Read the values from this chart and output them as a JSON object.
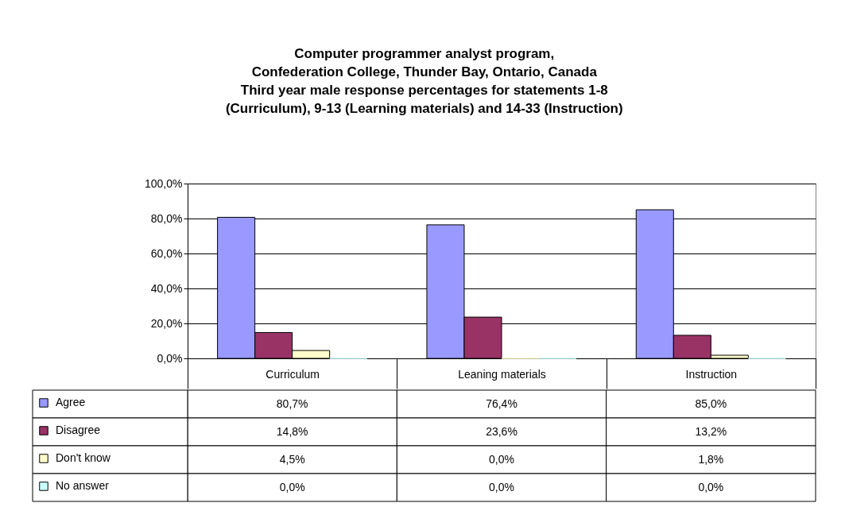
{
  "chart_data": {
    "type": "bar",
    "title": "Computer programmer analyst program,\nConfederation College, Thunder Bay, Ontario, Canada\nThird year male response percentages for statements 1-8\n(Curriculum), 9-13 (Learning materials) and 14-33 (Instruction)",
    "categories": [
      "Curriculum",
      "Leaning materials",
      "Instruction"
    ],
    "series": [
      {
        "name": "Agree",
        "color": "#9999ff",
        "values": [
          80.7,
          76.4,
          85.0
        ],
        "value_labels": [
          "80,7%",
          "76,4%",
          "85,0%"
        ]
      },
      {
        "name": "Disagree",
        "color": "#993366",
        "values": [
          14.8,
          23.6,
          13.2
        ],
        "value_labels": [
          "14,8%",
          "23,6%",
          "13,2%"
        ]
      },
      {
        "name": "Don't know",
        "color": "#ffffcc",
        "values": [
          4.5,
          0.0,
          1.8
        ],
        "value_labels": [
          "4,5%",
          "0,0%",
          "1,8%"
        ]
      },
      {
        "name": "No answer",
        "color": "#ccffff",
        "values": [
          0.0,
          0.0,
          0.0
        ],
        "value_labels": [
          "0,0%",
          "0,0%",
          "0,0%"
        ]
      }
    ],
    "ylim": [
      0,
      100
    ],
    "yticks": [
      {
        "value": 0,
        "label": "0,0%"
      },
      {
        "value": 20,
        "label": "20,0%"
      },
      {
        "value": 40,
        "label": "40,0%"
      },
      {
        "value": 60,
        "label": "60,0%"
      },
      {
        "value": 80,
        "label": "80,0%"
      },
      {
        "value": 100,
        "label": "100,0%"
      }
    ],
    "grid": "y",
    "legend": "bottom left"
  }
}
